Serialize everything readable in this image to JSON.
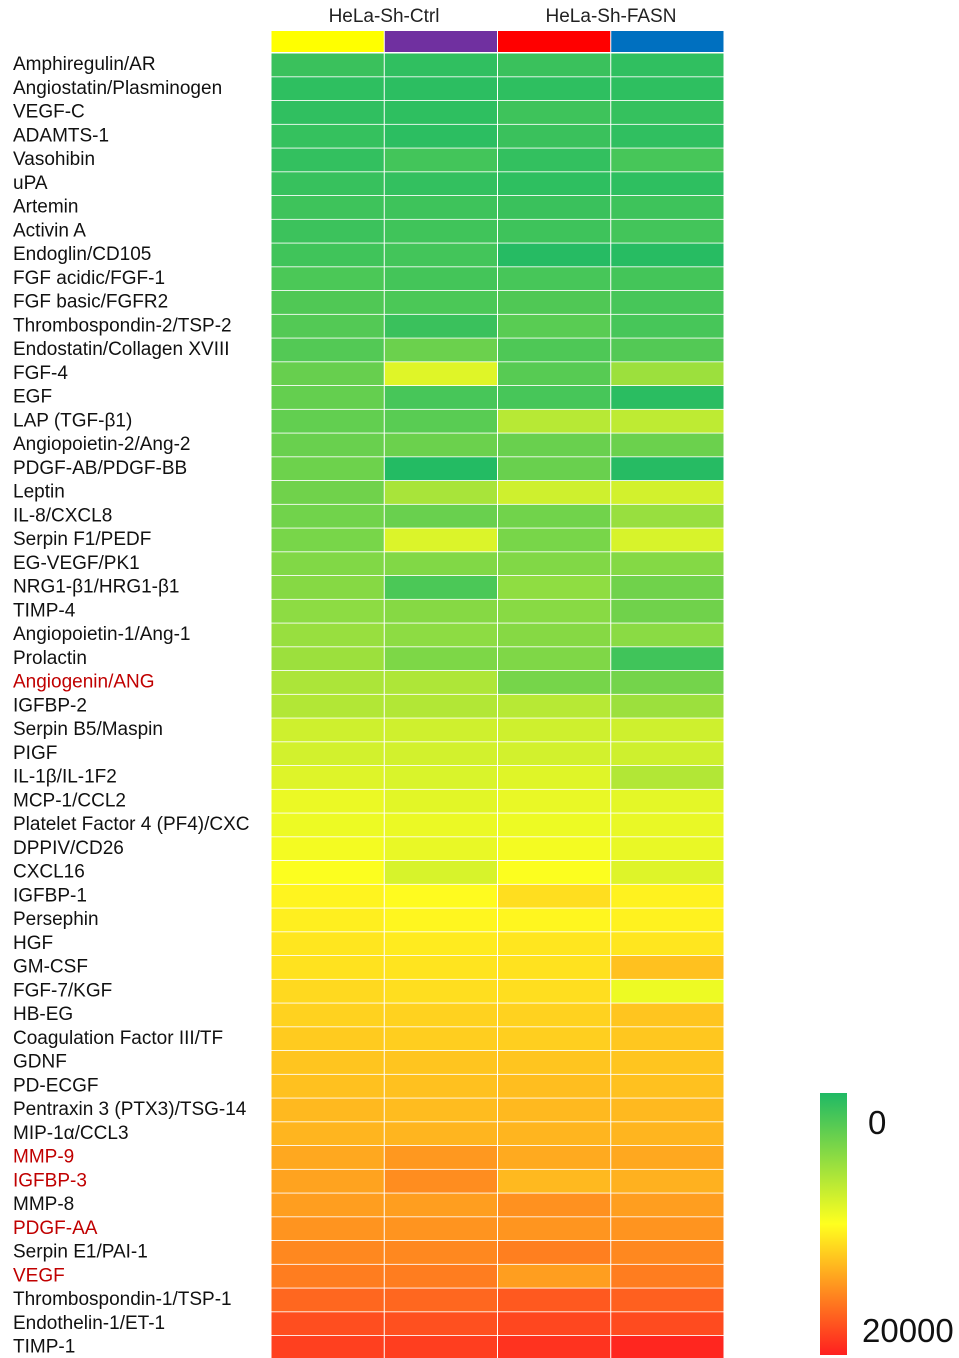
{
  "chart_data": {
    "type": "heatmap",
    "title": "",
    "groups": [
      {
        "name": "HeLa-Sh-Ctrl",
        "columns": 2
      },
      {
        "name": "HeLa-Sh-FASN",
        "columns": 2
      }
    ],
    "column_colors": [
      "#ffff00",
      "#7030a0",
      "#ff0000",
      "#0070c0"
    ],
    "highlight_color": "#c00000",
    "rows": [
      "Amphiregulin/AR",
      "Angiostatin/Plasminogen",
      "VEGF-C",
      "ADAMTS-1",
      "Vasohibin",
      "uPA",
      "Artemin",
      "Activin A",
      "Endoglin/CD105",
      "FGF acidic/FGF-1",
      "FGF basic/FGFR2",
      "Thrombospondin-2/TSP-2",
      "Endostatin/Collagen XVIII",
      "FGF-4",
      "EGF",
      "LAP (TGF-β1)",
      "Angiopoietin-2/Ang-2",
      "PDGF-AB/PDGF-BB",
      "Leptin",
      "IL-8/CXCL8",
      "Serpin F1/PEDF",
      "EG-VEGF/PK1",
      "NRG1-β1/HRG1-β1",
      "TIMP-4",
      "Angiopoietin-1/Ang-1",
      "Prolactin",
      "Angiogenin/ANG",
      "IGFBP-2",
      "Serpin B5/Maspin",
      "PIGF",
      "IL-1β/IL-1F2",
      "MCP-1/CCL2",
      "Platelet Factor 4 (PF4)/CXC",
      "DPPIV/CD26",
      "CXCL16",
      "IGFBP-1",
      "Persephin",
      "HGF",
      "GM-CSF",
      "FGF-7/KGF",
      "HB-EG",
      "Coagulation Factor III/TF",
      "GDNF",
      "PD-ECGF",
      "Pentraxin 3 (PTX3)/TSG-14",
      "MIP-1α/CCL3",
      "MMP-9",
      "IGFBP-3",
      "MMP-8",
      "PDGF-AA",
      "Serpin E1/PAI-1",
      "VEGF",
      "Thrombospondin-1/TSP-1",
      "Endothelin-1/ET-1",
      "TIMP-1"
    ],
    "highlighted_rows": [
      "Angiogenin/ANG",
      "MMP-9",
      "IGFBP-3",
      "PDGF-AA",
      "VEGF"
    ],
    "values": [
      [
        1200,
        800,
        1200,
        800
      ],
      [
        700,
        600,
        700,
        700
      ],
      [
        800,
        700,
        1400,
        1000
      ],
      [
        1000,
        600,
        1200,
        800
      ],
      [
        900,
        1600,
        900,
        1800
      ],
      [
        1100,
        900,
        700,
        700
      ],
      [
        1400,
        1400,
        1200,
        1400
      ],
      [
        1300,
        1500,
        1400,
        1600
      ],
      [
        1500,
        1600,
        300,
        400
      ],
      [
        2000,
        1700,
        1800,
        1700
      ],
      [
        2200,
        2000,
        2200,
        1800
      ],
      [
        2300,
        1200,
        2600,
        1800
      ],
      [
        2300,
        3400,
        2100,
        2300
      ],
      [
        3200,
        8600,
        2500,
        5600
      ],
      [
        3100,
        1800,
        1800,
        500
      ],
      [
        3000,
        2600,
        6800,
        7100
      ],
      [
        3300,
        3400,
        3300,
        3400
      ],
      [
        3500,
        200,
        3300,
        300
      ],
      [
        3600,
        6100,
        7800,
        8000
      ],
      [
        3700,
        3300,
        3700,
        5400
      ],
      [
        4000,
        8400,
        4000,
        8200
      ],
      [
        4400,
        4400,
        4400,
        4500
      ],
      [
        4600,
        2000,
        5000,
        3600
      ],
      [
        4900,
        4600,
        4700,
        3600
      ],
      [
        5400,
        4900,
        4600,
        4800
      ],
      [
        5600,
        4200,
        4300,
        1500
      ],
      [
        6300,
        6400,
        3900,
        3800
      ],
      [
        6600,
        6600,
        6800,
        5600
      ],
      [
        7800,
        7900,
        7800,
        7800
      ],
      [
        8000,
        8000,
        8000,
        7800
      ],
      [
        8500,
        8300,
        8600,
        6600
      ],
      [
        9100,
        8700,
        9000,
        8800
      ],
      [
        9200,
        9100,
        9200,
        9000
      ],
      [
        9500,
        9000,
        9500,
        9000
      ],
      [
        9900,
        8200,
        9900,
        8500
      ],
      [
        10500,
        10200,
        11500,
        10600
      ],
      [
        10700,
        10400,
        10400,
        10600
      ],
      [
        11100,
        10900,
        11100,
        11100
      ],
      [
        11300,
        11200,
        11300,
        12800
      ],
      [
        11700,
        11500,
        11500,
        9200
      ],
      [
        12000,
        12000,
        12000,
        12600
      ],
      [
        12300,
        12200,
        12100,
        12500
      ],
      [
        12600,
        12600,
        12600,
        12600
      ],
      [
        12800,
        12800,
        12900,
        12800
      ],
      [
        13100,
        13000,
        13100,
        13100
      ],
      [
        13300,
        13300,
        13300,
        13300
      ],
      [
        13900,
        14600,
        13800,
        13900
      ],
      [
        14100,
        15100,
        13100,
        13500
      ],
      [
        14300,
        14300,
        14900,
        14300
      ],
      [
        14800,
        14800,
        14700,
        14800
      ],
      [
        15300,
        15300,
        15700,
        15300
      ],
      [
        15800,
        15800,
        14300,
        15800
      ],
      [
        16800,
        16800,
        17400,
        17100
      ],
      [
        17900,
        17800,
        18200,
        18000
      ],
      [
        18500,
        18600,
        19100,
        19700
      ]
    ],
    "colorbar": {
      "min_label": "0",
      "max_label": "20000",
      "min": 0,
      "max": 20000,
      "colors": [
        "#00b050",
        "#ffff00",
        "#ff0000"
      ]
    }
  }
}
